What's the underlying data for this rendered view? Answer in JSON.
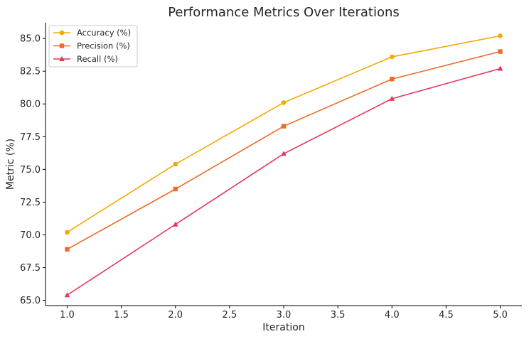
{
  "chart_data": {
    "type": "line",
    "title": "Performance Metrics Over Iterations",
    "xlabel": "Iteration",
    "ylabel": "Metric (%)",
    "x": [
      1,
      2,
      3,
      4,
      5
    ],
    "xlim": [
      0.8,
      5.2
    ],
    "ylim": [
      64.6,
      86.2
    ],
    "xticks": [
      "1.0",
      "1.5",
      "2.0",
      "2.5",
      "3.0",
      "3.5",
      "4.0",
      "4.5",
      "5.0"
    ],
    "yticks": [
      "65.0",
      "67.5",
      "70.0",
      "72.5",
      "75.0",
      "77.5",
      "80.0",
      "82.5",
      "85.0"
    ],
    "grid": false,
    "legend_position": "top-left",
    "series": [
      {
        "name": "Accuracy (%)",
        "values": [
          70.2,
          75.4,
          80.1,
          83.6,
          85.2
        ],
        "color": "#f5a800",
        "marker": "circle"
      },
      {
        "name": "Precision (%)",
        "values": [
          68.9,
          73.5,
          78.3,
          81.9,
          84.0
        ],
        "color": "#f06a28",
        "marker": "square"
      },
      {
        "name": "Recall (%)",
        "values": [
          65.4,
          70.8,
          76.2,
          80.4,
          82.7
        ],
        "color": "#e8365a",
        "marker": "triangle"
      }
    ]
  }
}
